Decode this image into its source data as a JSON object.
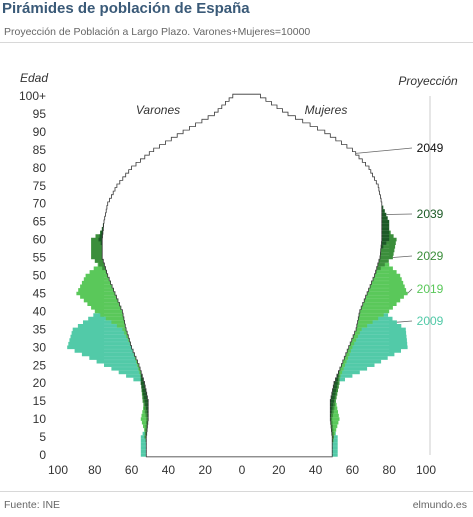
{
  "header": {
    "title": "Pirámides de población de España",
    "subtitle": "Proyección de Población a Largo Plazo. Varones+Mujeres=10000"
  },
  "footer": {
    "source": "Fuente: INE",
    "brand": "elmundo.es"
  },
  "chart_data": {
    "type": "population-pyramid",
    "ylabel": "Edad",
    "legend_title": "Proyección",
    "left_label": "Varones",
    "right_label": "Mujeres",
    "y_ticks": [
      "0",
      "5",
      "10",
      "15",
      "20",
      "25",
      "30",
      "35",
      "40",
      "45",
      "50",
      "55",
      "60",
      "65",
      "70",
      "75",
      "80",
      "85",
      "90",
      "95",
      "100+"
    ],
    "x_ticks": [
      "100",
      "80",
      "60",
      "40",
      "20",
      "0",
      "20",
      "40",
      "60",
      "80",
      "100"
    ],
    "xlim": [
      0,
      100
    ],
    "ylim": [
      0,
      100
    ],
    "ages": [
      0,
      5,
      10,
      15,
      20,
      25,
      30,
      35,
      40,
      45,
      50,
      55,
      60,
      65,
      70,
      75,
      80,
      85,
      90,
      95,
      100
    ],
    "series": [
      {
        "name": "2049",
        "color": "#ffffff",
        "male": [
          52,
          52,
          51,
          51,
          53,
          56,
          60,
          63,
          65,
          69,
          73,
          76,
          76,
          75,
          73,
          68,
          60,
          48,
          32,
          15,
          5
        ],
        "female": [
          49,
          49,
          48,
          48,
          50,
          54,
          58,
          62,
          64,
          68,
          72,
          75,
          76,
          76,
          76,
          74,
          69,
          60,
          45,
          25,
          10
        ]
      },
      {
        "name": "2039",
        "color": "#1c5a26",
        "male": [
          52,
          51,
          51,
          53,
          55,
          55,
          56,
          58,
          60,
          62,
          66,
          72,
          78,
          75,
          70,
          64,
          54,
          42,
          28,
          12,
          4
        ],
        "female": [
          49,
          48,
          48,
          50,
          52,
          53,
          55,
          57,
          60,
          62,
          66,
          72,
          80,
          80,
          76,
          72,
          64,
          53,
          38,
          20,
          8
        ]
      },
      {
        "name": "2029",
        "color": "#3b8e3b",
        "male": [
          50,
          53,
          52,
          54,
          55,
          55,
          56,
          58,
          60,
          64,
          72,
          82,
          82,
          70,
          64,
          56,
          47,
          35,
          22,
          9,
          3
        ],
        "female": [
          48,
          50,
          49,
          51,
          53,
          53,
          55,
          57,
          60,
          64,
          71,
          82,
          84,
          76,
          70,
          65,
          57,
          45,
          30,
          15,
          5
        ]
      },
      {
        "name": "2019",
        "color": "#5ac85a",
        "male": [
          50,
          52,
          55,
          53,
          54,
          57,
          60,
          65,
          80,
          90,
          85,
          74,
          68,
          62,
          57,
          50,
          40,
          28,
          16,
          6,
          2
        ],
        "female": [
          48,
          50,
          53,
          51,
          52,
          56,
          60,
          65,
          80,
          90,
          86,
          76,
          70,
          67,
          63,
          58,
          49,
          37,
          23,
          10,
          3
        ]
      },
      {
        "name": "2009",
        "color": "#52caa8",
        "male": [
          55,
          55,
          50,
          50,
          55,
          75,
          95,
          92,
          78,
          70,
          62,
          56,
          52,
          50,
          46,
          40,
          31,
          20,
          10,
          3,
          1
        ],
        "female": [
          52,
          52,
          47,
          47,
          52,
          72,
          90,
          89,
          77,
          71,
          64,
          59,
          56,
          55,
          53,
          49,
          41,
          28,
          15,
          5,
          1
        ]
      }
    ]
  }
}
